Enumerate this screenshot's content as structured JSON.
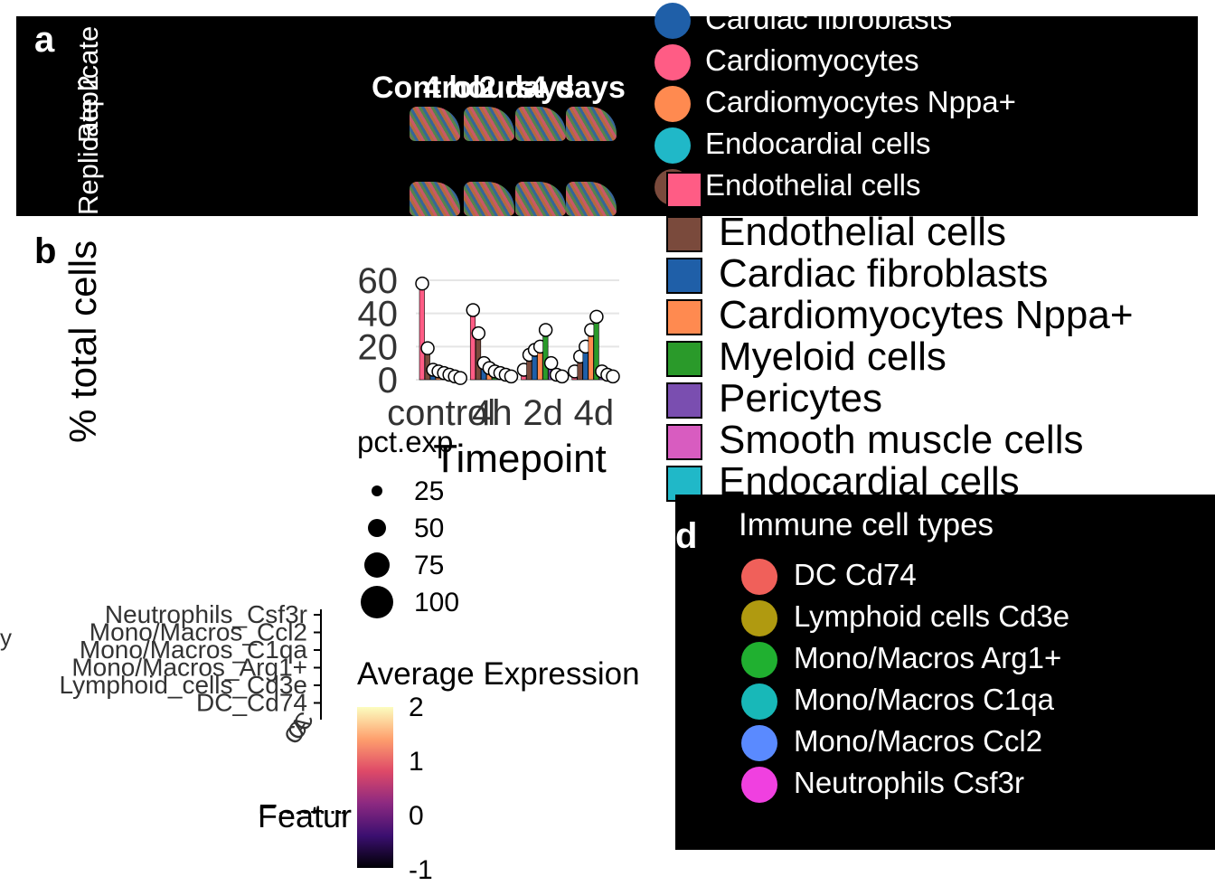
{
  "panel_a": {
    "letter": "a",
    "strip_titles": [
      "Control",
      "4 hours",
      "2 days",
      "4 days"
    ],
    "row_labels": [
      "Replicate 1",
      "Replicate 2"
    ]
  },
  "panel_b_letter": "b",
  "panel_d_letter": "d",
  "celltype_legend": [
    {
      "label": "Cardiac fibroblasts",
      "color": "#1f5fa8"
    },
    {
      "label": "Cardiomyocytes",
      "color": "#ff5c85"
    },
    {
      "label": "Cardiomyocytes Nppa+",
      "color": "#ff8a50"
    },
    {
      "label": "Endocardial cells",
      "color": "#20b8c8"
    },
    {
      "label": "Endothelial cells",
      "color": "#7a4a3c"
    }
  ],
  "celltype_key": [
    {
      "label": "Endothelial cells",
      "color": "#7a4a3c"
    },
    {
      "label": "Cardiac fibroblasts",
      "color": "#1f5fa8"
    },
    {
      "label": "Cardiomyocytes Nppa+",
      "color": "#ff8a50"
    },
    {
      "label": "Myeloid cells",
      "color": "#2a9a2a"
    },
    {
      "label": "Pericytes",
      "color": "#7a4eb0"
    },
    {
      "label": "Smooth muscle cells",
      "color": "#d85cc0"
    },
    {
      "label": "Endocardial cells",
      "color": "#20b8c8"
    }
  ],
  "celltype_key_top": {
    "color": "#ff5c85"
  },
  "immune_legend": {
    "title": "Immune cell types",
    "items": [
      {
        "label": "DC Cd74",
        "color": "#f0605a"
      },
      {
        "label": "Lymphoid cells Cd3e",
        "color": "#b09a10"
      },
      {
        "label": "Mono/Macros Arg1+",
        "color": "#20b030"
      },
      {
        "label": "Mono/Macros C1qa",
        "color": "#18b8b8"
      },
      {
        "label": "Mono/Macros Ccl2",
        "color": "#5a8aff"
      },
      {
        "label": "Neutrophils Csf3r",
        "color": "#f040e0"
      }
    ]
  },
  "dot_legend": {
    "size_title": "pct.exp",
    "sizes": [
      "25",
      "50",
      "75",
      "100"
    ],
    "color_title": "Average Expression",
    "color_ticks": [
      "2",
      "1",
      "0",
      "-1"
    ]
  },
  "dotplot": {
    "rows": [
      "Neutrophils_Csf3r",
      "Mono/Macros_Ccl2",
      "Mono/Macros_C1qa",
      "Mono/Macros_Arg1+",
      "Lymphoid_cells_Cd3e",
      "DC_Cd74"
    ],
    "xlabel": "Featur",
    "ylabel_fragment": "y"
  },
  "chart_data": {
    "type": "bar",
    "categories": [
      "control",
      "4h",
      "2d",
      "4d"
    ],
    "ylabel": "% total cells",
    "xlabel": "Timepoint",
    "ylim": [
      0,
      60
    ],
    "yticks": [
      0,
      20,
      40,
      60
    ],
    "series": [
      {
        "color": "#ff5c85",
        "values": [
          58,
          42,
          6,
          5
        ]
      },
      {
        "color": "#7a4a3c",
        "values": [
          19,
          28,
          15,
          14
        ]
      },
      {
        "color": "#1f5fa8",
        "values": [
          6,
          10,
          18,
          20
        ]
      },
      {
        "color": "#ff8a50",
        "values": [
          5,
          7,
          20,
          30
        ]
      },
      {
        "color": "#2a9a2a",
        "values": [
          4,
          5,
          30,
          38
        ]
      },
      {
        "color": "#7a4eb0",
        "values": [
          3,
          4,
          10,
          5
        ]
      },
      {
        "color": "#d85cc0",
        "values": [
          2,
          3,
          3,
          3
        ]
      },
      {
        "color": "#20b8c8",
        "values": [
          1,
          2,
          2,
          2
        ]
      }
    ]
  }
}
